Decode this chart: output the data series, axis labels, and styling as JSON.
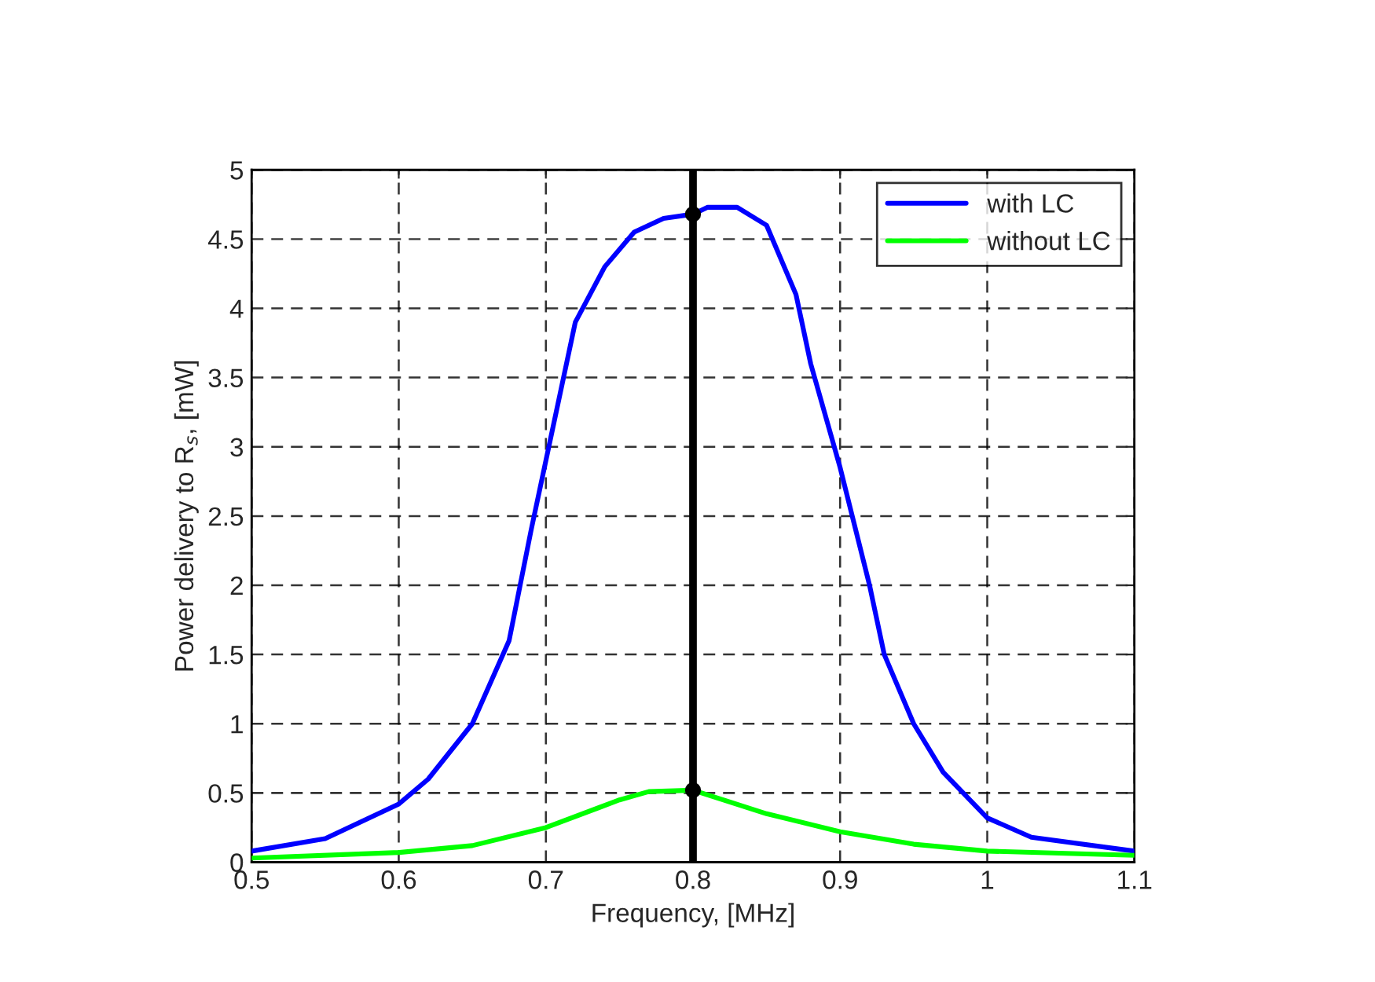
{
  "chart_data": {
    "type": "line",
    "xlabel": "Frequency, [MHz]",
    "ylabel": "Power delivery to R$_{s}$, [mW]",
    "xlim": [
      0.5,
      1.1
    ],
    "xticks": [
      0.5,
      0.6,
      0.7,
      0.8,
      0.9,
      1,
      1.1
    ],
    "ylim": [
      0,
      5
    ],
    "yticks": [
      0,
      0.5,
      1,
      1.5,
      2,
      2.5,
      3,
      3.5,
      4,
      4.5,
      5
    ],
    "grid": true,
    "legend": "top right",
    "marker": "none",
    "line_style": "solid",
    "series": [
      {
        "name": "with LC",
        "color": "#0000ff",
        "x": [
          0.5,
          0.55,
          0.6,
          0.62,
          0.65,
          0.675,
          0.69,
          0.7,
          0.72,
          0.74,
          0.76,
          0.78,
          0.8,
          0.81,
          0.83,
          0.85,
          0.87,
          0.88,
          0.9,
          0.92,
          0.93,
          0.95,
          0.97,
          1.0,
          1.03,
          1.1
        ],
        "values": [
          0.08,
          0.17,
          0.42,
          0.6,
          1.0,
          1.6,
          2.4,
          2.9,
          3.9,
          4.3,
          4.55,
          4.65,
          4.68,
          4.73,
          4.73,
          4.6,
          4.1,
          3.6,
          2.85,
          2.0,
          1.5,
          1.0,
          0.65,
          0.32,
          0.18,
          0.08
        ]
      },
      {
        "name": "without LC",
        "color": "#00ff00",
        "x": [
          0.5,
          0.6,
          0.65,
          0.7,
          0.75,
          0.77,
          0.8,
          0.85,
          0.9,
          0.95,
          1.0,
          1.1
        ],
        "values": [
          0.03,
          0.07,
          0.12,
          0.25,
          0.45,
          0.51,
          0.52,
          0.35,
          0.22,
          0.13,
          0.08,
          0.05
        ]
      },
      {
        "type": "scatter",
        "color": "#000000",
        "marker": "circle",
        "x": [
          0.8,
          0.8
        ],
        "values": [
          4.68,
          0.52
        ]
      }
    ],
    "ref_lines": [
      {
        "axis": "x",
        "value": 0.8,
        "color": "#000000"
      }
    ]
  }
}
